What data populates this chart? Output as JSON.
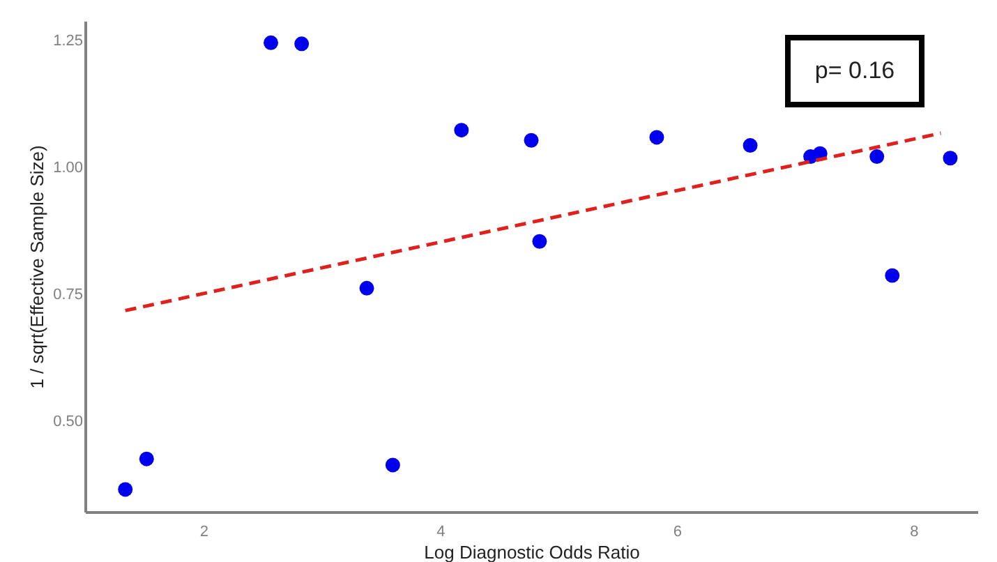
{
  "chart_data": {
    "type": "scatter",
    "xlabel": "Log Diagnostic Odds Ratio",
    "ylabel": "1 / sqrt(Effective Sample Size)",
    "xlim": [
      1.0,
      8.54
    ],
    "ylim": [
      0.322,
      1.288
    ],
    "xticks": [
      2,
      4,
      6,
      8
    ],
    "yticks": [
      {
        "value": 0.5,
        "label": "0.50"
      },
      0.75,
      {
        "value": 1.0,
        "label": "1.00"
      },
      1.25
    ],
    "grid": false,
    "series": [
      {
        "marker": "circle",
        "color": "#0000ee",
        "x": [
          1.34,
          1.52,
          2.57,
          2.83,
          3.38,
          3.6,
          4.18,
          4.77,
          4.84,
          5.83,
          6.62,
          7.13,
          7.21,
          7.69,
          7.82,
          8.31
        ],
        "values": [
          0.366,
          0.426,
          1.245,
          1.243,
          0.762,
          0.414,
          1.073,
          1.053,
          0.854,
          1.059,
          1.043,
          1.021,
          1.027,
          1.021,
          0.787,
          1.018
        ]
      },
      {
        "type": "line",
        "color": "#e0201c",
        "line_style": "dashed",
        "x": [
          1.34,
          8.23
        ],
        "values": [
          0.718,
          1.067
        ]
      }
    ],
    "annotations": [
      "p= 0.16"
    ]
  }
}
